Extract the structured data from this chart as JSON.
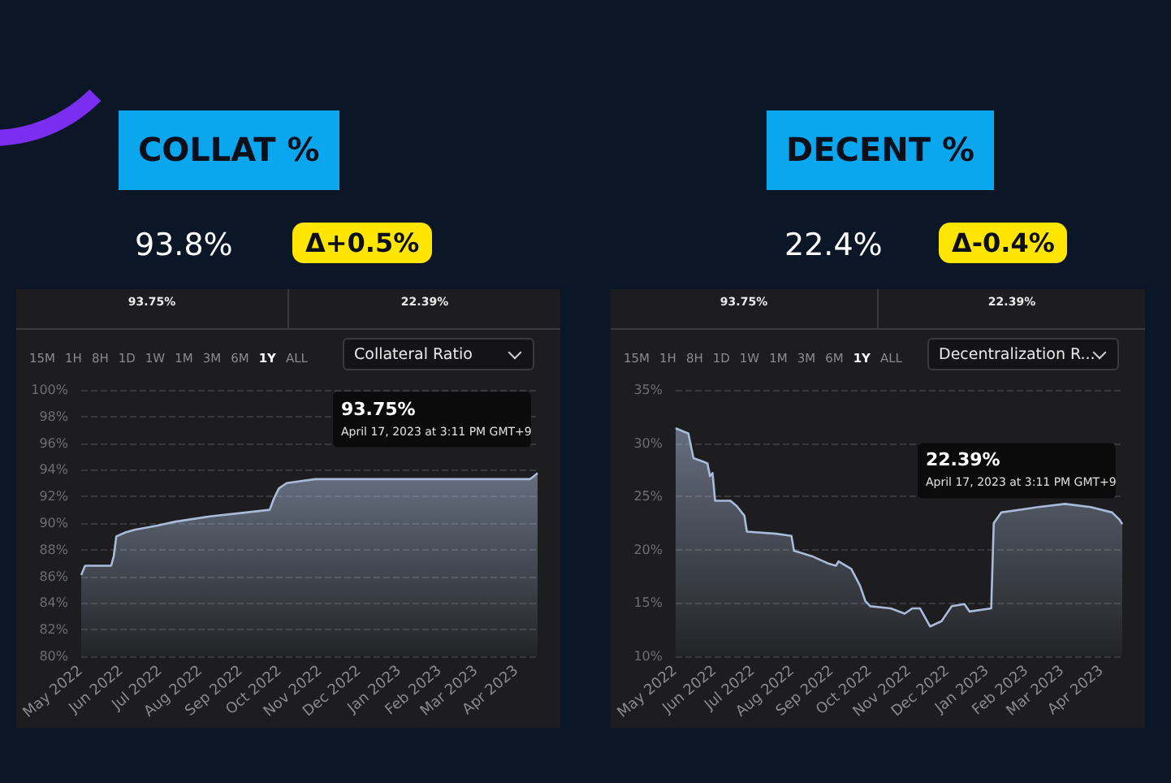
{
  "chart_data": [
    {
      "type": "area",
      "title": "COLLAT %",
      "subtitle": "93.8%",
      "marker": "none",
      "grid": "y",
      "annotations": [
        "Δ+0.5%",
        "93.75%",
        "22.39%",
        "15M",
        "1H",
        "8H",
        "1D",
        "1W",
        "1M",
        "3M",
        "6M",
        "1Y",
        "ALL",
        "Collateral Ratio",
        "93.75%",
        "April 17, 2023 at 3:11 PM GMT+9"
      ],
      "x": [
        "2022-05-01",
        "2022-05-04",
        "2022-05-24",
        "2022-05-26",
        "2022-05-28",
        "2022-06-04",
        "2022-06-11",
        "2022-06-28",
        "2022-07-12",
        "2022-08-08",
        "2022-09-05",
        "2022-09-23",
        "2022-09-26",
        "2022-09-30",
        "2022-10-06",
        "2022-10-28",
        "2023-04-11",
        "2023-04-14",
        "2023-04-17"
      ],
      "series": [
        {
          "color": "#a9bbd9",
          "values": [
            86.1,
            86.8,
            86.8,
            87.5,
            89.0,
            89.3,
            89.5,
            89.8,
            90.1,
            90.5,
            90.8,
            91.0,
            91.8,
            92.6,
            93.0,
            93.3,
            93.3,
            93.5,
            93.75
          ]
        }
      ],
      "xlim": [
        "2022-05-01",
        "2023-04-17"
      ],
      "xticks": [
        {
          "value": "2022-05-01",
          "label": "May 2022"
        },
        {
          "value": "2022-06-01",
          "label": "Jun 2022"
        },
        {
          "value": "2022-07-01",
          "label": "Jul 2022"
        },
        {
          "value": "2022-08-01",
          "label": "Aug 2022"
        },
        {
          "value": "2022-09-01",
          "label": "Sep 2022"
        },
        {
          "value": "2022-10-01",
          "label": "Oct 2022"
        },
        {
          "value": "2022-11-01",
          "label": "Nov 2022"
        },
        {
          "value": "2022-12-01",
          "label": "Dec 2022"
        },
        {
          "value": "2023-01-01",
          "label": "Jan 2023"
        },
        {
          "value": "2023-02-01",
          "label": "Feb 2023"
        },
        {
          "value": "2023-03-01",
          "label": "Mar 2023"
        },
        {
          "value": "2023-04-01",
          "label": "Apr 2023"
        }
      ],
      "ylim": [
        80,
        100
      ],
      "yticks": [
        {
          "value": 80,
          "label": "80%"
        },
        {
          "value": 82,
          "label": "82%"
        },
        {
          "value": 84,
          "label": "84%"
        },
        {
          "value": 86,
          "label": "86%"
        },
        {
          "value": 88,
          "label": "88%"
        },
        {
          "value": 90,
          "label": "90%"
        },
        {
          "value": 92,
          "label": "92%"
        },
        {
          "value": 94,
          "label": "94%"
        },
        {
          "value": 96,
          "label": "96%"
        },
        {
          "value": 98,
          "label": "98%"
        },
        {
          "value": 100,
          "label": "100%"
        }
      ]
    },
    {
      "type": "area",
      "title": "DECENT %",
      "subtitle": "22.4%",
      "marker": "none",
      "grid": "y",
      "annotations": [
        "Δ-0.4%",
        "93.75%",
        "22.39%",
        "15M",
        "1H",
        "8H",
        "1D",
        "1W",
        "1M",
        "3M",
        "6M",
        "1Y",
        "ALL",
        "Decentralization R...",
        "22.39%",
        "April 17, 2023 at 3:11 PM GMT+9"
      ],
      "x": [
        "2022-05-01",
        "2022-05-11",
        "2022-05-15",
        "2022-05-22",
        "2022-05-26",
        "2022-05-28",
        "2022-05-30",
        "2022-06-01",
        "2022-06-13",
        "2022-06-18",
        "2022-06-24",
        "2022-06-26",
        "2022-07-19",
        "2022-07-31",
        "2022-08-02",
        "2022-08-16",
        "2022-08-29",
        "2022-09-04",
        "2022-09-06",
        "2022-09-16",
        "2022-09-23",
        "2022-09-27",
        "2022-10-01",
        "2022-10-17",
        "2022-10-28",
        "2022-11-03",
        "2022-11-09",
        "2022-11-17",
        "2022-11-26",
        "2022-12-04",
        "2022-12-14",
        "2022-12-18",
        "2023-01-04",
        "2023-01-06",
        "2023-01-12",
        "2023-02-10",
        "2023-03-03",
        "2023-03-23",
        "2023-04-09",
        "2023-04-15",
        "2023-04-17"
      ],
      "series": [
        {
          "color": "#a9bbd9",
          "values": [
            31.4,
            30.9,
            28.6,
            28.3,
            28.1,
            26.9,
            27.2,
            24.6,
            24.6,
            24.1,
            23.2,
            21.7,
            21.5,
            21.3,
            19.9,
            19.4,
            18.7,
            18.5,
            18.9,
            18.2,
            16.6,
            15.2,
            14.7,
            14.5,
            14.0,
            14.5,
            14.5,
            12.8,
            13.3,
            14.7,
            14.9,
            14.2,
            14.5,
            22.5,
            23.5,
            24.0,
            24.3,
            24.0,
            23.5,
            22.8,
            22.39
          ]
        }
      ],
      "xlim": [
        "2022-05-01",
        "2023-04-17"
      ],
      "xticks": [
        {
          "value": "2022-05-01",
          "label": "May 2022"
        },
        {
          "value": "2022-06-01",
          "label": "Jun 2022"
        },
        {
          "value": "2022-07-01",
          "label": "Jul 2022"
        },
        {
          "value": "2022-08-01",
          "label": "Aug 2022"
        },
        {
          "value": "2022-09-01",
          "label": "Sep 2022"
        },
        {
          "value": "2022-10-01",
          "label": "Oct 2022"
        },
        {
          "value": "2022-11-01",
          "label": "Nov 2022"
        },
        {
          "value": "2022-12-01",
          "label": "Dec 2022"
        },
        {
          "value": "2023-01-01",
          "label": "Jan 2023"
        },
        {
          "value": "2023-02-01",
          "label": "Feb 2023"
        },
        {
          "value": "2023-03-01",
          "label": "Mar 2023"
        },
        {
          "value": "2023-04-01",
          "label": "Apr 2023"
        }
      ],
      "ylim": [
        10,
        35
      ],
      "yticks": [
        {
          "value": 10,
          "label": "10%"
        },
        {
          "value": 15,
          "label": "15%"
        },
        {
          "value": 20,
          "label": "20%"
        },
        {
          "value": 25,
          "label": "25%"
        },
        {
          "value": 30,
          "label": "30%"
        },
        {
          "value": 35,
          "label": "35%"
        }
      ]
    }
  ]
}
